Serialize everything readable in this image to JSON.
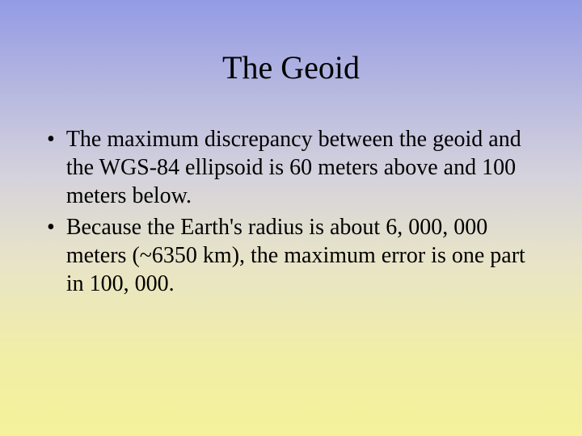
{
  "slide": {
    "title": "The Geoid",
    "bullets": [
      "The maximum discrepancy between the geoid and the WGS-84 ellipsoid is 60 meters above and 100 meters below.",
      "Because the Earth's radius is about 6, 000, 000 meters (~6350 km), the maximum error is one part in 100, 000."
    ],
    "colors": {
      "gradient_top": "#939be4",
      "gradient_bottom": "#f5f29a",
      "text": "#000000"
    },
    "typography": {
      "title_fontsize": 40,
      "body_fontsize": 28,
      "font_family": "Times New Roman"
    }
  }
}
